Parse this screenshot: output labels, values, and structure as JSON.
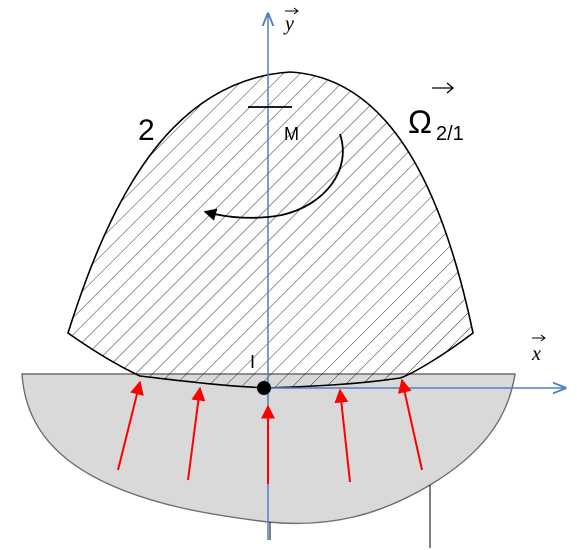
{
  "labels": {
    "body": "2",
    "point_m": "M",
    "point_i": "I",
    "axis_y": "y",
    "axis_x": "x",
    "omega_symbol": "Ω",
    "omega_sub": "2/1"
  },
  "colors": {
    "axis": "#4f81bd",
    "force_arrow": "#ff0000",
    "lower_body_fill": "#d9d9d9",
    "outline": "#000000",
    "hatch": "#000000"
  },
  "force_arrows_count": 5
}
